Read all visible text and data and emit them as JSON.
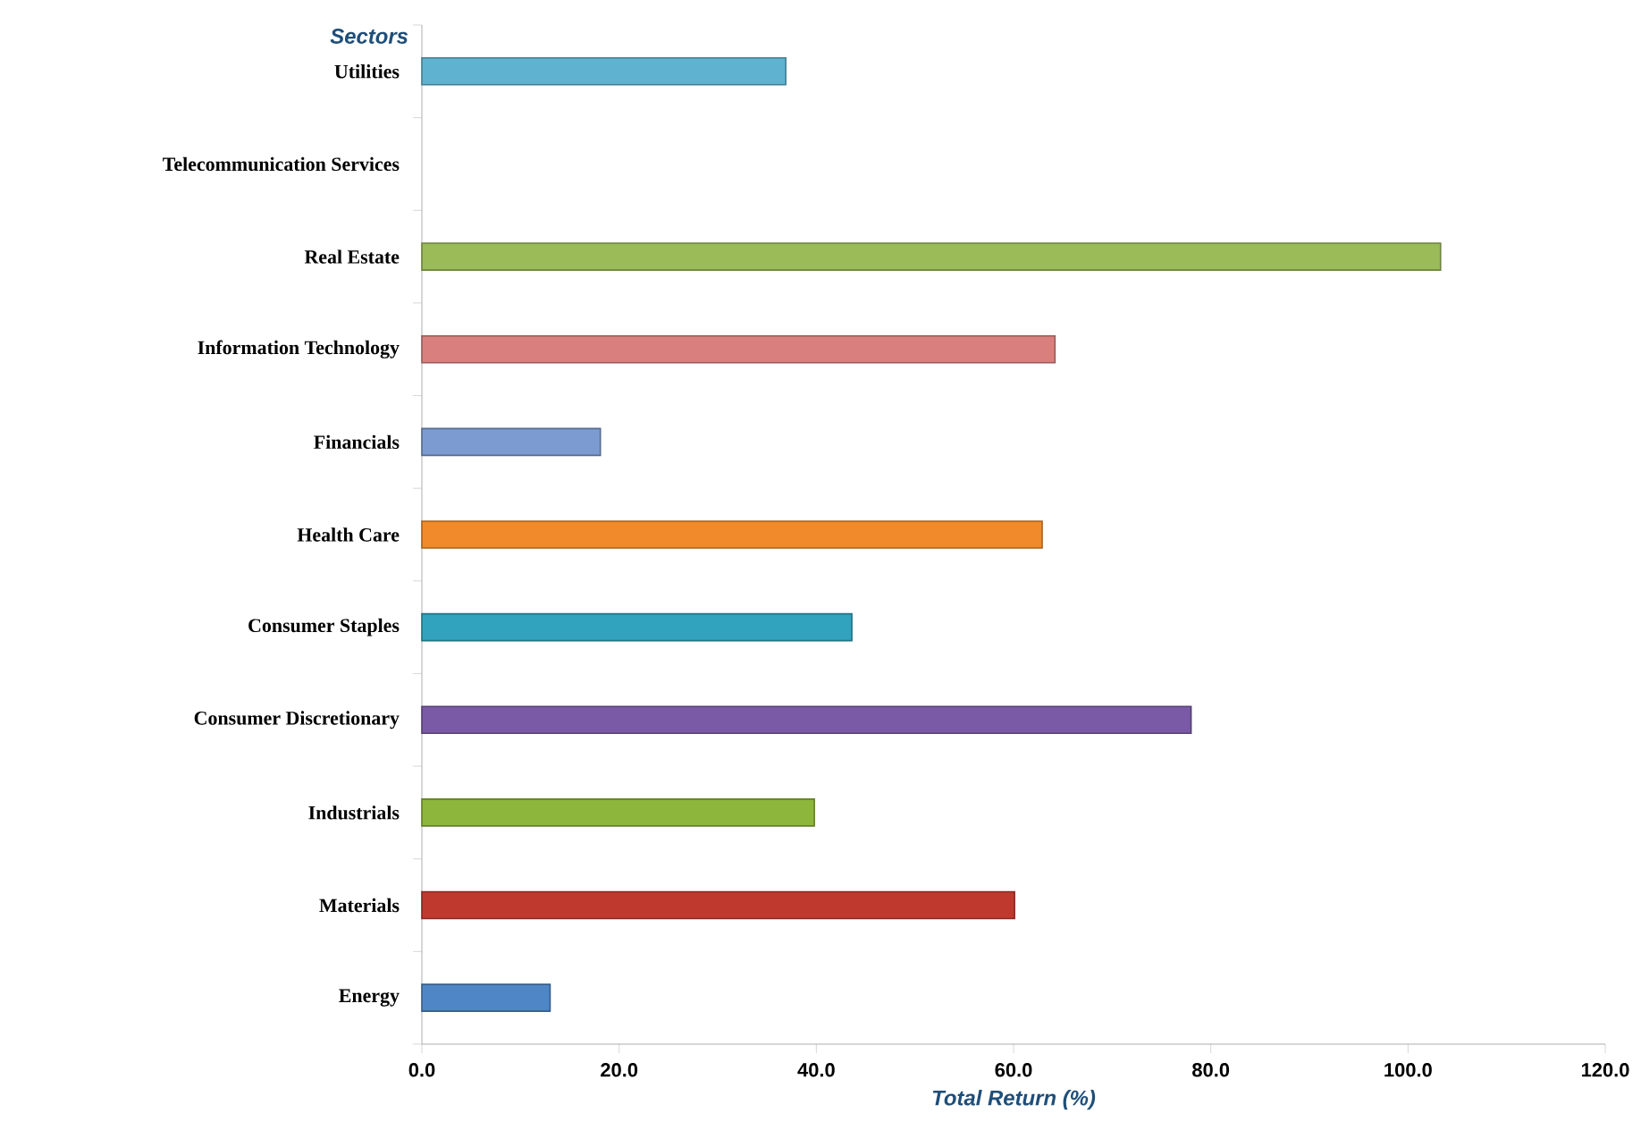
{
  "chart_data": {
    "type": "bar",
    "orientation": "horizontal",
    "xlabel": "Total Return (%)",
    "ylabel": "Sectors",
    "categories": [
      "Utilities",
      "Telecommunication Services",
      "Real Estate",
      "Information Technology",
      "Financials",
      "Health Care",
      "Consumer Staples",
      "Consumer Discretionary",
      "Industrials",
      "Materials",
      "Energy"
    ],
    "values": [
      36.9,
      null,
      103.3,
      64.2,
      18.1,
      62.9,
      43.6,
      78.0,
      39.8,
      60.1,
      13.0
    ],
    "colors": [
      "#5fb3d0",
      "#aaaaaa",
      "#9bbb59",
      "#d9807e",
      "#7b9bd1",
      "#f08a2a",
      "#31a3be",
      "#7a5aa6",
      "#8db63c",
      "#c0392f",
      "#4f86c6"
    ],
    "xlim": [
      0,
      120
    ],
    "xticks": [
      {
        "value": 0,
        "label": "0.0"
      },
      {
        "value": 20,
        "label": "20.0"
      },
      {
        "value": 40,
        "label": "40.0"
      },
      {
        "value": 60,
        "label": "60.0"
      },
      {
        "value": 80,
        "label": "80.0"
      },
      {
        "value": 100,
        "label": "100.0"
      },
      {
        "value": 120,
        "label": "120.0"
      }
    ]
  }
}
